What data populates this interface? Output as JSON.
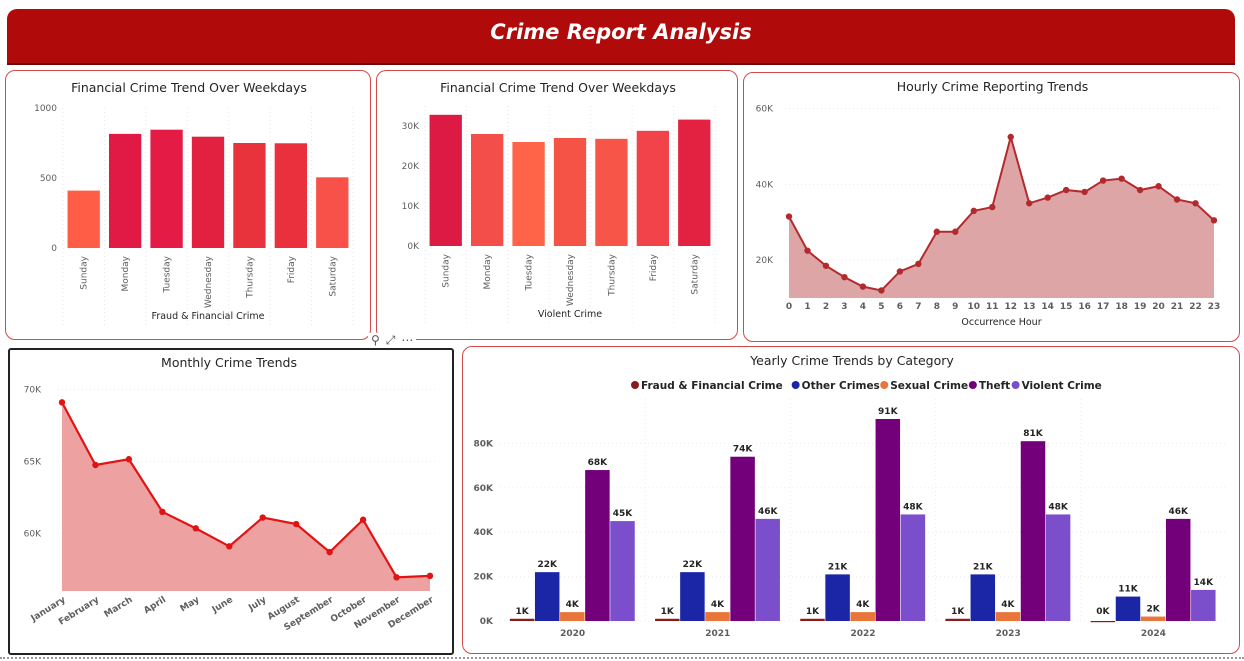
{
  "header": {
    "title": "Crime Report Analysis"
  },
  "toolbar": {
    "filter_icon": "filter-icon",
    "focus_icon": "focus-mode-icon",
    "more_icon": "more-options-icon"
  },
  "colors": {
    "banner": "#b00a0a",
    "card_border": "#d24a4a",
    "bar_palette": [
      "#ff5d45",
      "#e01a44",
      "#e31b45",
      "#e2203f",
      "#e8333d",
      "#ea2f3d",
      "#f7514a"
    ]
  },
  "chart_data": [
    {
      "type": "bar",
      "title": "Financial Crime Trend Over Weekdays",
      "xlabel": "Fraud & Financial Crime",
      "ylabel": "",
      "categories": [
        "Sunday",
        "Monday",
        "Tuesday",
        "Wednesday",
        "Thursday",
        "Friday",
        "Saturday"
      ],
      "values": [
        410,
        815,
        845,
        795,
        750,
        748,
        505
      ],
      "ylim": [
        0,
        1000
      ],
      "yticks": [
        "0",
        "500",
        "1000"
      ],
      "bar_colors": [
        "#ff5d45",
        "#e01a44",
        "#e31b45",
        "#e2203f",
        "#e8333d",
        "#ea2f3d",
        "#f7514a"
      ]
    },
    {
      "type": "bar",
      "title": "Financial Crime Trend Over Weekdays",
      "xlabel": "Violent Crime",
      "ylabel": "",
      "categories": [
        "Sunday",
        "Monday",
        "Tuesday",
        "Wednesday",
        "Thursday",
        "Friday",
        "Saturday"
      ],
      "values": [
        32800,
        28000,
        26000,
        27000,
        26800,
        28800,
        31600
      ],
      "ylim": [
        0,
        35000
      ],
      "yticks": [
        "0K",
        "10K",
        "20K",
        "30K"
      ],
      "bar_colors": [
        "#dc1a43",
        "#f34e49",
        "#ff6448",
        "#f65347",
        "#f75548",
        "#f2424a",
        "#e32141"
      ]
    },
    {
      "type": "area",
      "title": "Hourly Crime Reporting Trends",
      "xlabel": "Occurrence Hour",
      "ylabel": "",
      "x": [
        0,
        1,
        2,
        3,
        4,
        5,
        6,
        7,
        8,
        9,
        10,
        11,
        12,
        13,
        14,
        15,
        16,
        17,
        18,
        19,
        20,
        21,
        22,
        23
      ],
      "values": [
        31500,
        22500,
        18500,
        15500,
        13000,
        12000,
        17000,
        19000,
        27500,
        27500,
        33000,
        34000,
        52500,
        35000,
        36500,
        38500,
        38000,
        41000,
        41500,
        38500,
        39500,
        36000,
        35000,
        30500
      ],
      "ylim": [
        10000,
        62000
      ],
      "yticks": [
        "20K",
        "40K",
        "60K"
      ],
      "color": "#b32a2e"
    },
    {
      "type": "area",
      "title": "Monthly Crime Trends",
      "xlabel": "",
      "ylabel": "",
      "categories": [
        "January",
        "February",
        "March",
        "April",
        "May",
        "June",
        "July",
        "August",
        "September",
        "October",
        "November",
        "December"
      ],
      "values": [
        69100,
        64750,
        65150,
        61500,
        60350,
        59100,
        61100,
        60650,
        58700,
        60950,
        56950,
        57050
      ],
      "ylim": [
        56000,
        71000
      ],
      "yticks": [
        "60K",
        "65K",
        "70K"
      ],
      "color": "#e01414"
    },
    {
      "type": "bar",
      "title": "Yearly Crime Trends by Category",
      "xlabel": "",
      "ylabel": "",
      "categories": [
        "2020",
        "2021",
        "2022",
        "2023",
        "2024"
      ],
      "legend_position": "top",
      "series": [
        {
          "name": "Fraud & Financial Crime",
          "color": "#8b1a1a",
          "values": [
            1,
            1,
            1,
            1,
            0
          ],
          "labels": [
            "1K",
            "1K",
            "1K",
            "1K",
            "0K"
          ]
        },
        {
          "name": "Other Crimes",
          "color": "#1a26a6",
          "values": [
            22,
            22,
            21,
            21,
            11
          ],
          "labels": [
            "22K",
            "22K",
            "21K",
            "21K",
            "11K"
          ]
        },
        {
          "name": "Sexual Crime",
          "color": "#e8753a",
          "values": [
            4,
            4,
            4,
            4,
            2
          ],
          "labels": [
            "4K",
            "4K",
            "4K",
            "4K",
            "2K"
          ]
        },
        {
          "name": "Theft",
          "color": "#73007a",
          "values": [
            68,
            74,
            91,
            81,
            46
          ],
          "labels": [
            "68K",
            "74K",
            "91K",
            "81K",
            "46K"
          ]
        },
        {
          "name": "Violent Crime",
          "color": "#7b4fcc",
          "values": [
            45,
            46,
            48,
            48,
            14
          ],
          "labels": [
            "45K",
            "46K",
            "48K",
            "48K",
            "14K"
          ]
        }
      ],
      "ylim": [
        0,
        100
      ],
      "yticks": [
        "0K",
        "20K",
        "40K",
        "60K",
        "80K"
      ]
    }
  ]
}
